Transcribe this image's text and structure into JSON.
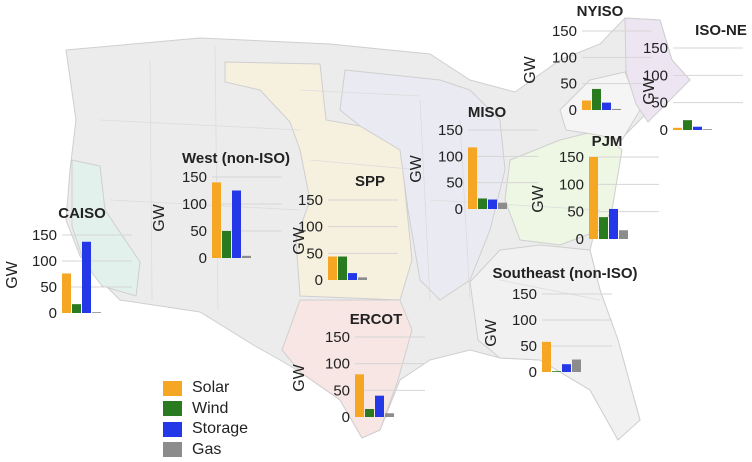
{
  "y_axis_label": "GW",
  "legend": [
    {
      "label": "Solar",
      "color": "#f5a623"
    },
    {
      "label": "Wind",
      "color": "#2a7a1f"
    },
    {
      "label": "Storage",
      "color": "#2438e8"
    },
    {
      "label": "Gas",
      "color": "#8c8c8c"
    }
  ],
  "chart_data": [
    {
      "type": "bar",
      "title": "CAISO",
      "ylabel": "GW",
      "categories": [
        "Solar",
        "Wind",
        "Storage",
        "Gas"
      ],
      "values": [
        76,
        17,
        137,
        0
      ],
      "yticks": [
        0,
        50,
        100,
        150
      ],
      "ylim": [
        0,
        150
      ]
    },
    {
      "type": "bar",
      "title": "West (non-ISO)",
      "ylabel": "GW",
      "categories": [
        "Solar",
        "Wind",
        "Storage",
        "Gas"
      ],
      "values": [
        140,
        50,
        125,
        4
      ],
      "yticks": [
        0,
        50,
        100,
        150
      ],
      "ylim": [
        0,
        150
      ]
    },
    {
      "type": "bar",
      "title": "SPP",
      "ylabel": "GW",
      "categories": [
        "Solar",
        "Wind",
        "Storage",
        "Gas"
      ],
      "values": [
        44,
        44,
        13,
        5
      ],
      "yticks": [
        0,
        50,
        100,
        150
      ],
      "ylim": [
        0,
        150
      ]
    },
    {
      "type": "bar",
      "title": "ERCOT",
      "ylabel": "GW",
      "categories": [
        "Solar",
        "Wind",
        "Storage",
        "Gas"
      ],
      "values": [
        80,
        15,
        40,
        7
      ],
      "yticks": [
        0,
        50,
        100,
        150
      ],
      "ylim": [
        0,
        150
      ]
    },
    {
      "type": "bar",
      "title": "MISO",
      "ylabel": "GW",
      "categories": [
        "Solar",
        "Wind",
        "Storage",
        "Gas"
      ],
      "values": [
        117,
        20,
        18,
        12
      ],
      "yticks": [
        0,
        50,
        100,
        150
      ],
      "ylim": [
        0,
        150
      ]
    },
    {
      "type": "bar",
      "title": "PJM",
      "ylabel": "GW",
      "categories": [
        "Solar",
        "Wind",
        "Storage",
        "Gas"
      ],
      "values": [
        150,
        40,
        55,
        16
      ],
      "yticks": [
        0,
        50,
        100,
        150
      ],
      "ylim": [
        0,
        150
      ]
    },
    {
      "type": "bar",
      "title": "NYISO",
      "ylabel": "GW",
      "categories": [
        "Solar",
        "Wind",
        "Storage",
        "Gas"
      ],
      "values": [
        18,
        40,
        14,
        2
      ],
      "yticks": [
        0,
        50,
        100,
        150
      ],
      "ylim": [
        0,
        150
      ]
    },
    {
      "type": "bar",
      "title": "ISO-NE",
      "ylabel": "GW",
      "categories": [
        "Solar",
        "Wind",
        "Storage",
        "Gas"
      ],
      "values": [
        4,
        18,
        6,
        1
      ],
      "yticks": [
        0,
        50,
        100,
        150
      ],
      "ylim": [
        0,
        150
      ]
    },
    {
      "type": "bar",
      "title": "Southeast (non-ISO)",
      "ylabel": "GW",
      "categories": [
        "Solar",
        "Wind",
        "Storage",
        "Gas"
      ],
      "values": [
        58,
        1,
        15,
        24
      ],
      "yticks": [
        0,
        50,
        100,
        150
      ],
      "ylim": [
        0,
        150
      ]
    }
  ]
}
